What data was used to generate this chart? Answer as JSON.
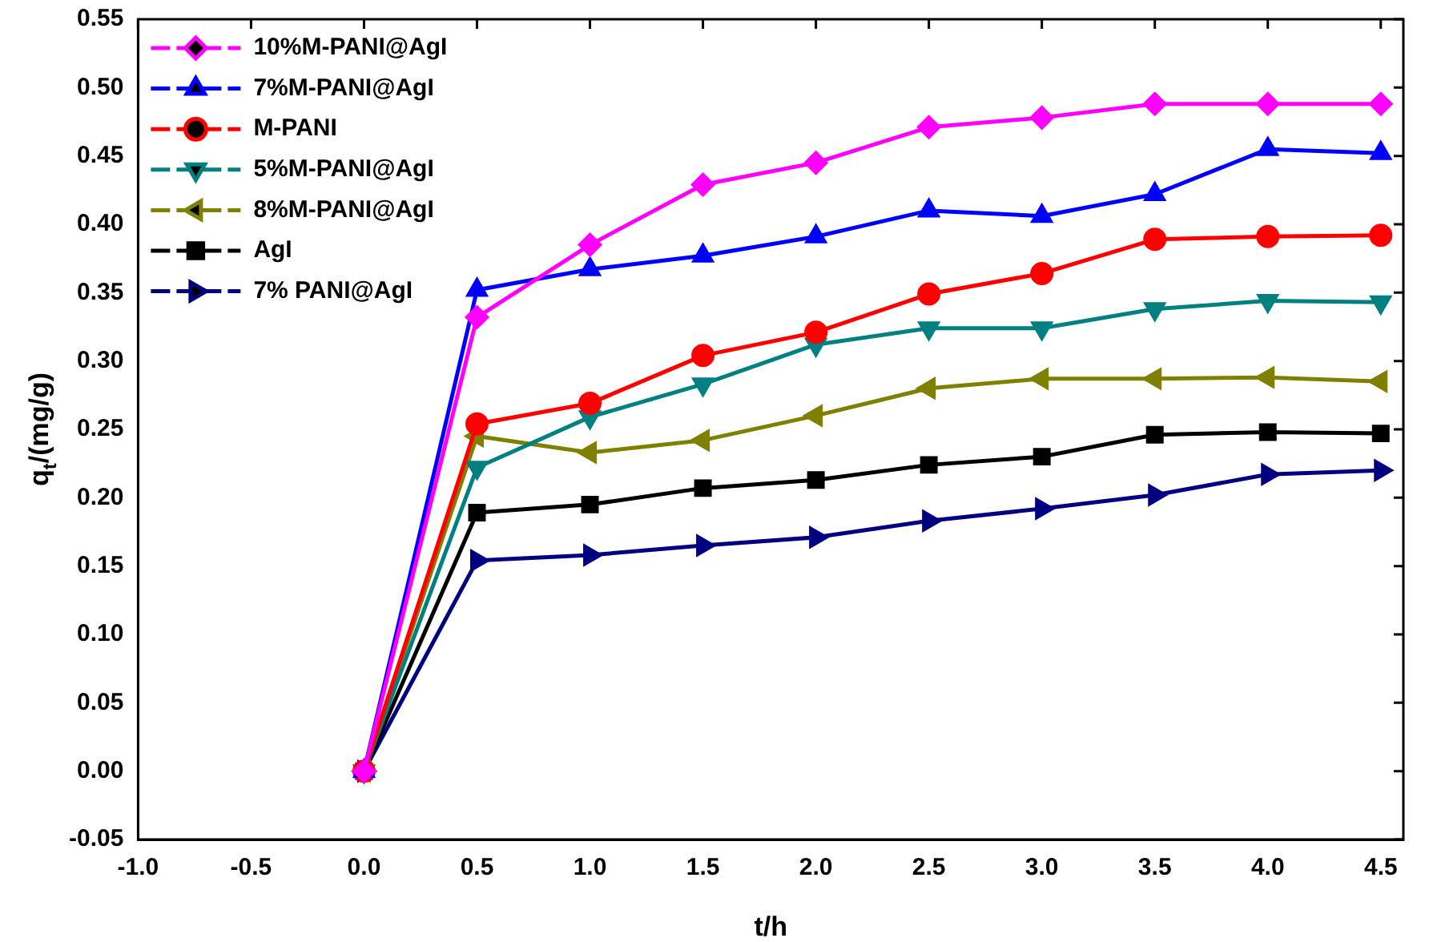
{
  "chart_data": {
    "type": "line",
    "xlabel": "t/h",
    "ylabel": "q$_{t}$/(mg/g)",
    "x": [
      0,
      0.5,
      1,
      1.5,
      2,
      2.5,
      3,
      3.5,
      4,
      4.5
    ],
    "xlim": [
      -1,
      4.6
    ],
    "xticks": [
      {
        "value": -1,
        "label": "-1.0"
      },
      {
        "value": -0.5,
        "label": "-0.5"
      },
      {
        "value": 0,
        "label": "0.0"
      },
      {
        "value": 0.5,
        "label": "0.5"
      },
      {
        "value": 1,
        "label": "1.0"
      },
      {
        "value": 1.5,
        "label": "1.5"
      },
      {
        "value": 2,
        "label": "2.0"
      },
      {
        "value": 2.5,
        "label": "2.5"
      },
      {
        "value": 3,
        "label": "3.0"
      },
      {
        "value": 3.5,
        "label": "3.5"
      },
      {
        "value": 4,
        "label": "4.0"
      },
      {
        "value": 4.5,
        "label": "4.5"
      }
    ],
    "ylim": [
      -0.05,
      0.55
    ],
    "yticks": [
      {
        "value": -0.05,
        "label": "-0.05"
      },
      {
        "value": 0,
        "label": "0.00"
      },
      {
        "value": 0.05,
        "label": "0.05"
      },
      {
        "value": 0.1,
        "label": "0.10"
      },
      {
        "value": 0.15,
        "label": "0.15"
      },
      {
        "value": 0.2,
        "label": "0.20"
      },
      {
        "value": 0.25,
        "label": "0.25"
      },
      {
        "value": 0.3,
        "label": "0.30"
      },
      {
        "value": 0.35,
        "label": "0.35"
      },
      {
        "value": 0.4,
        "label": "0.40"
      },
      {
        "value": 0.45,
        "label": "0.45"
      },
      {
        "value": 0.5,
        "label": "0.50"
      },
      {
        "value": 0.55,
        "label": "0.55"
      }
    ],
    "grid": false,
    "legend": "top left",
    "line_style": "solid",
    "series": [
      {
        "name": "10%M-PANI@AgI",
        "color": "#ff00ff",
        "marker": "diamond",
        "values": [
          0,
          0.332,
          0.385,
          0.429,
          0.445,
          0.471,
          0.478,
          0.488,
          0.488,
          0.488
        ]
      },
      {
        "name": "7%M-PANI@AgI",
        "color": "#0000ff",
        "marker": "triangle",
        "values": [
          0,
          0.352,
          0.367,
          0.377,
          0.391,
          0.41,
          0.406,
          0.422,
          0.455,
          0.452
        ]
      },
      {
        "name": "M-PANI",
        "color": "#ff0000",
        "marker": "circle",
        "values": [
          0,
          0.254,
          0.269,
          0.304,
          0.321,
          0.349,
          0.364,
          0.389,
          0.391,
          0.392
        ]
      },
      {
        "name": "5%M-PANI@AgI",
        "color": "#008080",
        "marker": "triangle-down",
        "values": [
          0,
          0.222,
          0.259,
          0.283,
          0.312,
          0.324,
          0.324,
          0.338,
          0.344,
          0.343
        ]
      },
      {
        "name": "8%M-PANI@AgI",
        "color": "#808000",
        "marker": "triangle-left",
        "values": [
          0,
          0.245,
          0.233,
          0.242,
          0.26,
          0.28,
          0.287,
          0.287,
          0.288,
          0.285
        ]
      },
      {
        "name": "AgI",
        "color": "#000000",
        "marker": "square",
        "values": [
          0,
          0.189,
          0.195,
          0.207,
          0.213,
          0.224,
          0.23,
          0.246,
          0.248,
          0.247
        ]
      },
      {
        "name": "7% PANI@AgI",
        "color": "#000080",
        "marker": "triangle-right",
        "values": [
          0,
          0.154,
          0.158,
          0.165,
          0.171,
          0.183,
          0.192,
          0.202,
          0.217,
          0.22
        ]
      }
    ]
  }
}
